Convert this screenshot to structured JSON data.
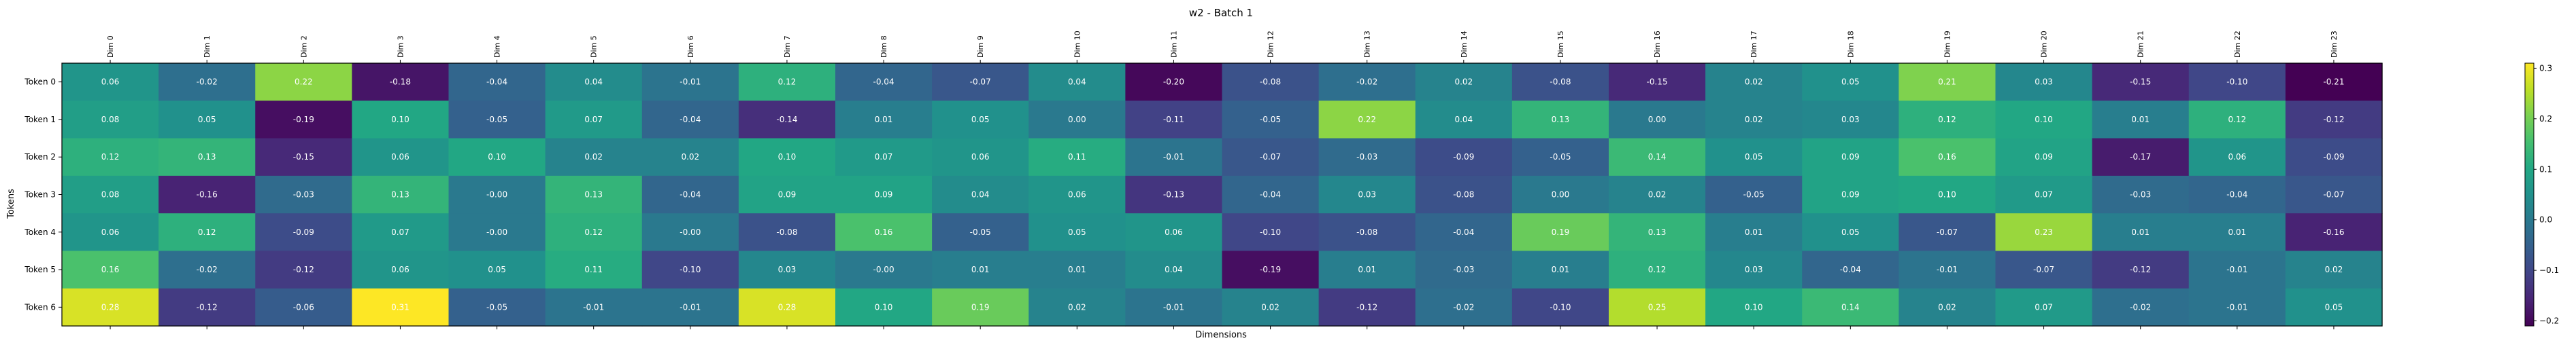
{
  "chart_data": {
    "type": "heatmap",
    "title": "w2 - Batch 1",
    "xlabel": "Dimensions",
    "ylabel": "Tokens",
    "x_labels": [
      "Dim 0",
      "Dim 1",
      "Dim 2",
      "Dim 3",
      "Dim 4",
      "Dim 5",
      "Dim 6",
      "Dim 7",
      "Dim 8",
      "Dim 9",
      "Dim 10",
      "Dim 11",
      "Dim 12",
      "Dim 13",
      "Dim 14",
      "Dim 15",
      "Dim 16",
      "Dim 17",
      "Dim 18",
      "Dim 19",
      "Dim 20",
      "Dim 21",
      "Dim 22",
      "Dim 23"
    ],
    "y_labels": [
      "Token 0",
      "Token 1",
      "Token 2",
      "Token 3",
      "Token 4",
      "Token 5",
      "Token 6"
    ],
    "values": [
      [
        0.06,
        -0.02,
        0.22,
        -0.18,
        -0.04,
        0.04,
        -0.01,
        0.12,
        -0.04,
        -0.07,
        0.04,
        -0.2,
        -0.08,
        -0.02,
        0.02,
        -0.08,
        -0.15,
        0.02,
        0.05,
        0.21,
        0.03,
        -0.15,
        -0.1,
        -0.21
      ],
      [
        0.08,
        0.05,
        -0.19,
        0.1,
        -0.05,
        0.07,
        -0.04,
        -0.14,
        0.01,
        0.05,
        0.0,
        -0.11,
        -0.05,
        0.22,
        0.04,
        0.13,
        0.0,
        0.02,
        0.03,
        0.12,
        0.1,
        0.01,
        0.12,
        -0.12
      ],
      [
        0.12,
        0.13,
        -0.15,
        0.06,
        0.1,
        0.02,
        0.02,
        0.1,
        0.07,
        0.06,
        0.11,
        -0.01,
        -0.07,
        -0.03,
        -0.09,
        -0.05,
        0.14,
        0.05,
        0.09,
        0.16,
        0.09,
        -0.17,
        0.06,
        -0.09
      ],
      [
        0.08,
        -0.16,
        -0.03,
        0.13,
        -0.0,
        0.13,
        -0.04,
        0.09,
        0.09,
        0.04,
        0.06,
        -0.13,
        -0.04,
        0.03,
        -0.08,
        0.0,
        0.02,
        -0.05,
        0.09,
        0.1,
        0.07,
        -0.03,
        -0.04,
        -0.07
      ],
      [
        0.06,
        0.12,
        -0.09,
        0.07,
        -0.0,
        0.12,
        -0.0,
        -0.08,
        0.16,
        -0.05,
        0.05,
        0.06,
        -0.1,
        -0.08,
        -0.04,
        0.19,
        0.13,
        0.01,
        0.05,
        -0.07,
        0.23,
        0.01,
        0.01,
        -0.16
      ],
      [
        0.16,
        -0.02,
        -0.12,
        0.06,
        0.05,
        0.11,
        -0.1,
        0.03,
        -0.0,
        0.01,
        0.01,
        0.04,
        -0.19,
        0.01,
        -0.03,
        0.01,
        0.12,
        0.03,
        -0.04,
        -0.01,
        -0.07,
        -0.12,
        -0.01,
        0.02
      ],
      [
        0.28,
        -0.12,
        -0.06,
        0.31,
        -0.05,
        -0.01,
        -0.01,
        0.28,
        0.1,
        0.19,
        0.02,
        -0.01,
        0.02,
        -0.12,
        -0.02,
        -0.1,
        0.25,
        0.1,
        0.14,
        0.02,
        0.07,
        -0.02,
        -0.01,
        0.05
      ]
    ],
    "value_labels": [
      [
        "0.06",
        "-0.02",
        "0.22",
        "-0.18",
        "-0.04",
        "0.04",
        "-0.01",
        "0.12",
        "-0.04",
        "-0.07",
        "0.04",
        "-0.20",
        "-0.08",
        "-0.02",
        "0.02",
        "-0.08",
        "-0.15",
        "0.02",
        "0.05",
        "0.21",
        "0.03",
        "-0.15",
        "-0.10",
        "-0.21"
      ],
      [
        "0.08",
        "0.05",
        "-0.19",
        "0.10",
        "-0.05",
        "0.07",
        "-0.04",
        "-0.14",
        "0.01",
        "0.05",
        "0.00",
        "-0.11",
        "-0.05",
        "0.22",
        "0.04",
        "0.13",
        "0.00",
        "0.02",
        "0.03",
        "0.12",
        "0.10",
        "0.01",
        "0.12",
        "-0.12"
      ],
      [
        "0.12",
        "0.13",
        "-0.15",
        "0.06",
        "0.10",
        "0.02",
        "0.02",
        "0.10",
        "0.07",
        "0.06",
        "0.11",
        "-0.01",
        "-0.07",
        "-0.03",
        "-0.09",
        "-0.05",
        "0.14",
        "0.05",
        "0.09",
        "0.16",
        "0.09",
        "-0.17",
        "0.06",
        "-0.09"
      ],
      [
        "0.08",
        "-0.16",
        "-0.03",
        "0.13",
        "-0.00",
        "0.13",
        "-0.04",
        "0.09",
        "0.09",
        "0.04",
        "0.06",
        "-0.13",
        "-0.04",
        "0.03",
        "-0.08",
        "0.00",
        "0.02",
        "-0.05",
        "0.09",
        "0.10",
        "0.07",
        "-0.03",
        "-0.04",
        "-0.07"
      ],
      [
        "0.06",
        "0.12",
        "-0.09",
        "0.07",
        "-0.00",
        "0.12",
        "-0.00",
        "-0.08",
        "0.16",
        "-0.05",
        "0.05",
        "0.06",
        "-0.10",
        "-0.08",
        "-0.04",
        "0.19",
        "0.13",
        "0.01",
        "0.05",
        "-0.07",
        "0.23",
        "0.01",
        "0.01",
        "-0.16"
      ],
      [
        "0.16",
        "-0.02",
        "-0.12",
        "0.06",
        "0.05",
        "0.11",
        "-0.10",
        "0.03",
        "-0.00",
        "0.01",
        "0.01",
        "0.04",
        "-0.19",
        "0.01",
        "-0.03",
        "0.01",
        "0.12",
        "0.03",
        "-0.04",
        "-0.01",
        "-0.07",
        "-0.12",
        "-0.01",
        "0.02"
      ],
      [
        "0.28",
        "-0.12",
        "-0.06",
        "0.31",
        "-0.05",
        "-0.01",
        "-0.01",
        "0.28",
        "0.10",
        "0.19",
        "0.02",
        "-0.01",
        "0.02",
        "-0.12",
        "-0.02",
        "-0.10",
        "0.25",
        "0.10",
        "0.14",
        "0.02",
        "0.07",
        "-0.02",
        "-0.01",
        "0.05"
      ]
    ],
    "colormap": "viridis",
    "vmin": -0.21,
    "vmax": 0.31,
    "colorbar_ticks": [
      -0.2,
      -0.1,
      0.0,
      0.1,
      0.2,
      0.3
    ],
    "colorbar_tick_labels": [
      "−0.2",
      "−0.1",
      "0.0",
      "0.1",
      "0.2",
      "0.3"
    ],
    "text_color_dark_cells": "#ffffff",
    "text_color_light_cells": "#ffffff",
    "grid": false
  }
}
